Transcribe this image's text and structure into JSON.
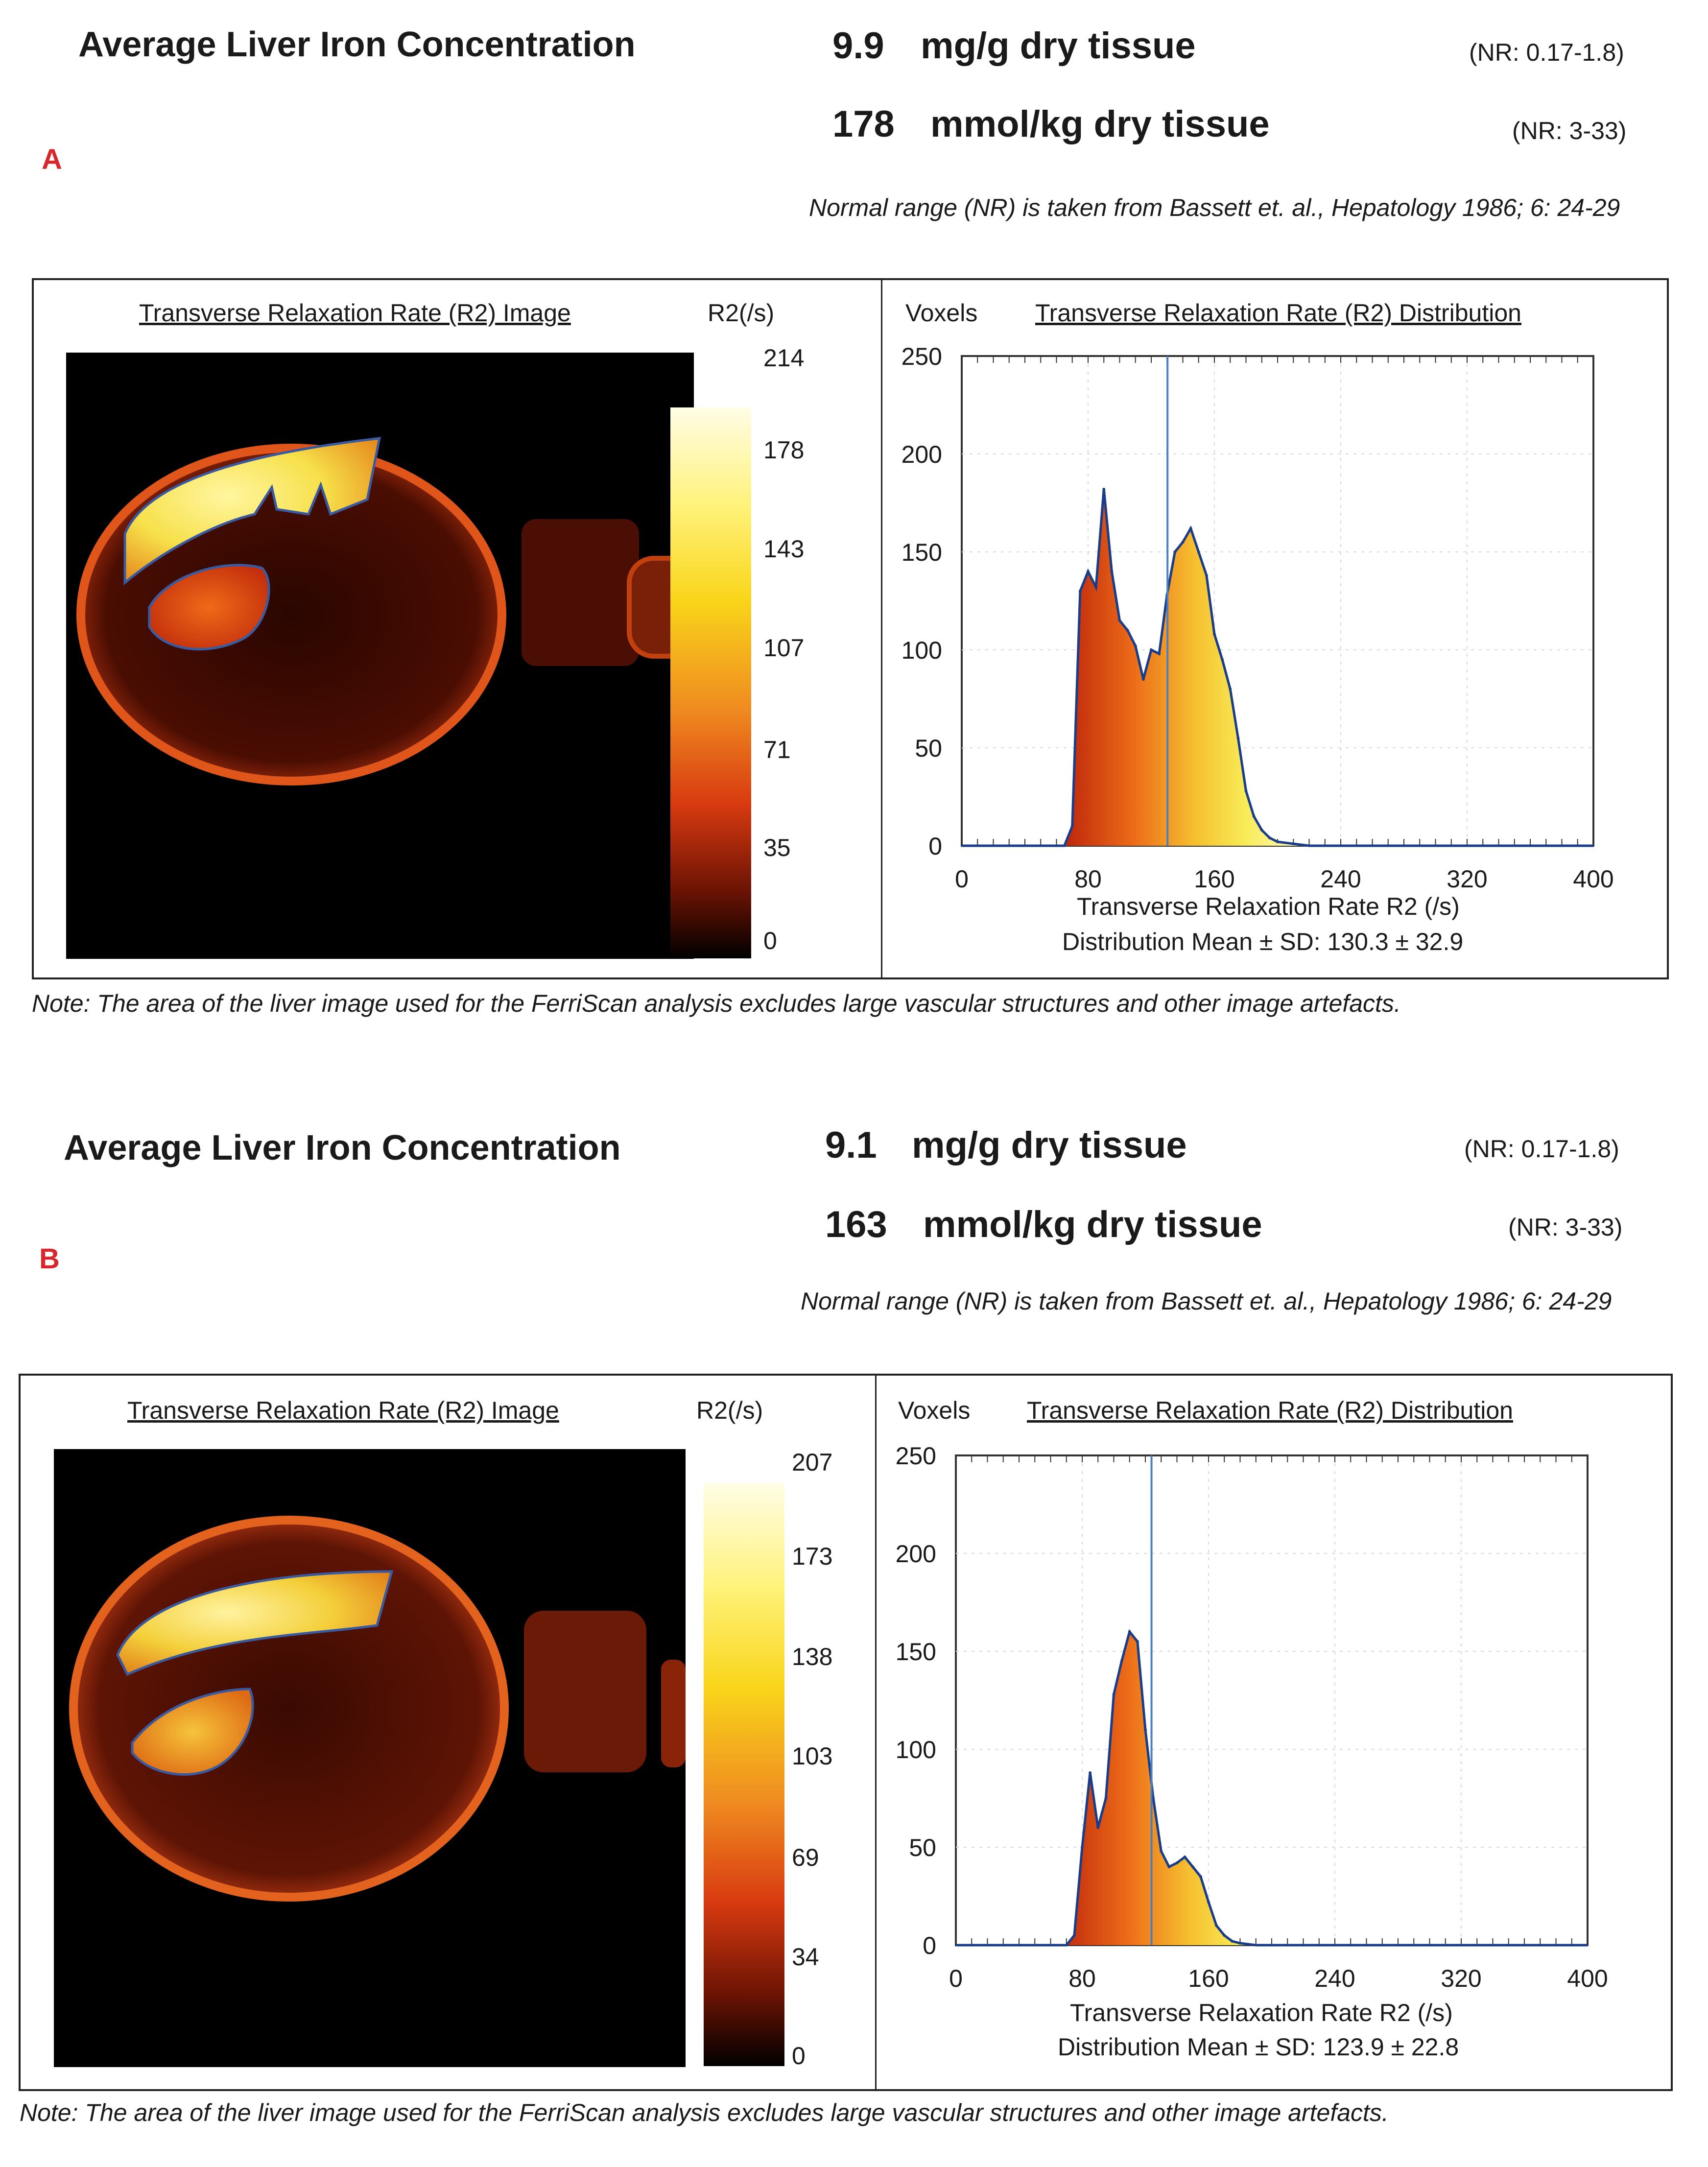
{
  "panels": [
    {
      "letter": "A",
      "title": "Average Liver Iron Concentration",
      "mg_value": "9.9",
      "mg_unit": "mg/g dry tissue",
      "mg_nr": "(NR: 0.17-1.8)",
      "mmol_value": "178",
      "mmol_unit": "mmol/kg dry tissue",
      "mmol_nr": "(NR: 3-33)",
      "reference": "Normal range (NR) is taken from Bassett et. al., Hepatology 1986; 6: 24-29",
      "image_title": "Transverse Relaxation Rate (R2) Image",
      "colorbar_label": "R2(/s)",
      "colorbar_ticks": [
        "214",
        "178",
        "143",
        "107",
        "71",
        "35",
        "0"
      ],
      "hist_ylabel": "Voxels",
      "hist_title": "Transverse Relaxation Rate (R2) Distribution",
      "hist_xlabel": "Transverse Relaxation Rate R2 (/s)",
      "hist_stats": "Distribution Mean ± SD: 130.3 ± 32.9",
      "note": "Note: The area of the liver image used for the FerriScan analysis excludes large vascular structures and other image artefacts."
    },
    {
      "letter": "B",
      "title": "Average Liver Iron Concentration",
      "mg_value": "9.1",
      "mg_unit": "mg/g dry tissue",
      "mg_nr": "(NR: 0.17-1.8)",
      "mmol_value": "163",
      "mmol_unit": "mmol/kg dry tissue",
      "mmol_nr": "(NR: 3-33)",
      "reference": "Normal range (NR) is taken from Bassett et. al., Hepatology 1986; 6: 24-29",
      "image_title": "Transverse Relaxation Rate (R2) Image",
      "colorbar_label": "R2(/s)",
      "colorbar_ticks": [
        "207",
        "173",
        "138",
        "103",
        "69",
        "34",
        "0"
      ],
      "hist_ylabel": "Voxels",
      "hist_title": "Transverse Relaxation Rate (R2) Distribution",
      "hist_xlabel": "Transverse Relaxation Rate R2 (/s)",
      "hist_stats": "Distribution Mean ± SD: 123.9 ± 22.8",
      "note": "Note: The area of the liver image used for the FerriScan analysis excludes large vascular structures and other image artefacts."
    }
  ],
  "chart_data": [
    {
      "type": "area",
      "title": "Transverse Relaxation Rate (R2) Distribution",
      "xlabel": "Transverse Relaxation Rate R2 (/s)",
      "ylabel": "Voxels",
      "xlim": [
        0,
        400
      ],
      "ylim": [
        0,
        250
      ],
      "xticks": [
        0,
        80,
        160,
        240,
        320,
        400
      ],
      "yticks": [
        0,
        50,
        100,
        150,
        200,
        250
      ],
      "mean": 130.3,
      "sd": 32.9,
      "x": [
        0,
        65,
        70,
        75,
        80,
        85,
        90,
        95,
        100,
        105,
        110,
        115,
        120,
        125,
        130,
        135,
        140,
        145,
        150,
        155,
        160,
        165,
        170,
        175,
        180,
        185,
        190,
        195,
        200,
        210,
        220,
        400
      ],
      "values": [
        0,
        0,
        10,
        130,
        140,
        132,
        182,
        140,
        115,
        110,
        102,
        85,
        100,
        98,
        128,
        150,
        155,
        162,
        150,
        138,
        108,
        95,
        80,
        55,
        28,
        15,
        8,
        4,
        2,
        1,
        0,
        0
      ]
    },
    {
      "type": "area",
      "title": "Transverse Relaxation Rate (R2) Distribution",
      "xlabel": "Transverse Relaxation Rate R2 (/s)",
      "ylabel": "Voxels",
      "xlim": [
        0,
        400
      ],
      "ylim": [
        0,
        250
      ],
      "xticks": [
        0,
        80,
        160,
        240,
        320,
        400
      ],
      "yticks": [
        0,
        50,
        100,
        150,
        200,
        250
      ],
      "mean": 123.9,
      "sd": 22.8,
      "x": [
        0,
        70,
        75,
        80,
        85,
        90,
        95,
        100,
        105,
        110,
        115,
        120,
        125,
        130,
        135,
        140,
        145,
        150,
        155,
        160,
        165,
        170,
        175,
        180,
        190,
        400
      ],
      "values": [
        0,
        0,
        5,
        50,
        88,
        60,
        75,
        128,
        145,
        160,
        155,
        110,
        75,
        48,
        40,
        42,
        45,
        40,
        35,
        22,
        10,
        5,
        2,
        1,
        0,
        0
      ]
    }
  ],
  "colors": {
    "accent_letter": "#d8262c",
    "hist_outline": "#1a3d8a",
    "mean_line": "#4a7fc0"
  }
}
